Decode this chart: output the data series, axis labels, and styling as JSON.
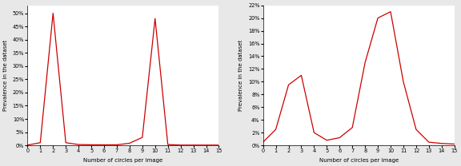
{
  "left": {
    "x": [
      0,
      1,
      2,
      3,
      4,
      5,
      6,
      7,
      8,
      9,
      10,
      11,
      12,
      13,
      14,
      15
    ],
    "y": [
      0.001,
      0.01,
      0.5,
      0.01,
      0.003,
      0.002,
      0.002,
      0.002,
      0.008,
      0.03,
      0.48,
      0.003,
      0.001,
      0.001,
      0.001,
      0.001
    ],
    "ylabel": "Prevalence in the dataset",
    "xlabel": "Number of circles per image",
    "ylim": [
      0,
      0.53
    ],
    "yticks": [
      0.0,
      0.05,
      0.1,
      0.15,
      0.2,
      0.25,
      0.3,
      0.35,
      0.4,
      0.45,
      0.5
    ],
    "xticks": [
      0,
      1,
      2,
      3,
      4,
      5,
      6,
      7,
      8,
      9,
      10,
      11,
      12,
      13,
      14,
      15
    ]
  },
  "right": {
    "x": [
      0,
      1,
      2,
      3,
      4,
      5,
      6,
      7,
      8,
      9,
      10,
      11,
      12,
      13,
      14,
      15
    ],
    "y": [
      0.005,
      0.025,
      0.095,
      0.11,
      0.02,
      0.008,
      0.012,
      0.028,
      0.13,
      0.2,
      0.21,
      0.1,
      0.025,
      0.005,
      0.003,
      0.002
    ],
    "ylabel": "Prevalence in the dataset",
    "xlabel": "Number of circles per image",
    "ylim": [
      0,
      0.22
    ],
    "yticks": [
      0.0,
      0.02,
      0.04,
      0.06,
      0.08,
      0.1,
      0.12,
      0.14,
      0.16,
      0.18,
      0.2,
      0.22
    ],
    "xticks": [
      0,
      1,
      2,
      3,
      4,
      5,
      6,
      7,
      8,
      9,
      10,
      11,
      12,
      13,
      14,
      15
    ]
  },
  "line_color": "#cc0000",
  "line_width": 0.9,
  "font_size": 5.0,
  "bg_color": "#ffffff",
  "fig_bg_color": "#e8e8e8"
}
